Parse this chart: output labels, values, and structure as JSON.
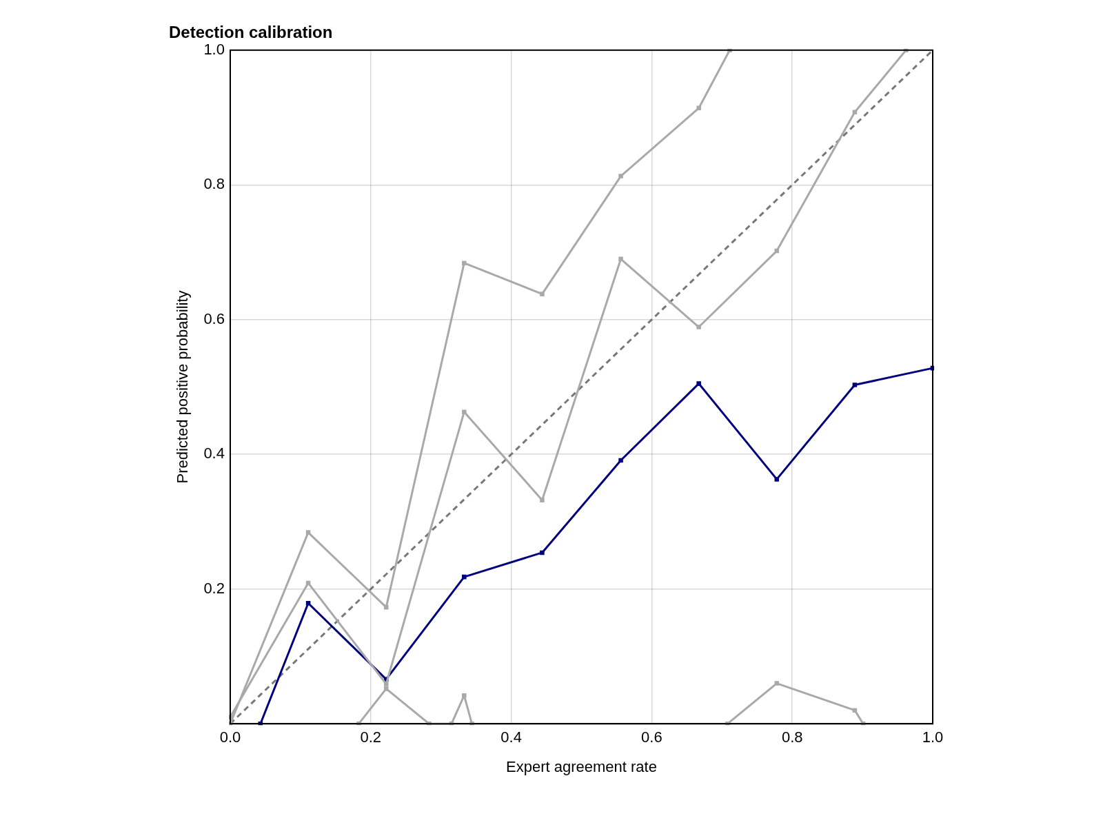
{
  "chart_data": {
    "type": "line",
    "title": "Detection calibration",
    "xlabel": "Expert agreement rate",
    "ylabel": "Predicted positive probability",
    "xlim": [
      0,
      1
    ],
    "ylim": [
      0,
      1
    ],
    "xticks": [
      {
        "value": 0,
        "label": "0.0"
      },
      0.2,
      0.4,
      0.6,
      0.8,
      {
        "value": 1,
        "label": "1.0"
      }
    ],
    "yticks": [
      0.2,
      0.4,
      0.6,
      0.8,
      {
        "value": 1,
        "label": "1.0"
      }
    ],
    "grid": true,
    "legend": false,
    "marker": "square",
    "line_style": "solid",
    "series": [
      {
        "color": "#a9a9a9",
        "x": [
          0,
          0.111,
          0.222,
          0.333,
          0.444,
          0.556,
          0.667,
          0.711
        ],
        "values": [
          0,
          0.284,
          0.173,
          0.684,
          0.638,
          0.813,
          0.914,
          1
        ]
      },
      {
        "color": "#a9a9a9",
        "x": [
          0,
          0.111,
          0.222,
          0.333,
          0.444,
          0.556,
          0.667,
          0.778,
          0.889,
          0.962
        ],
        "values": [
          0.01,
          0.209,
          0.059,
          0.463,
          0.332,
          0.69,
          0.589,
          0.702,
          0.908,
          1
        ]
      },
      {
        "color": "#a9a9a9",
        "x": [
          0.183,
          0.222,
          0.283,
          0.315,
          0.333,
          0.344,
          0.5,
          0.708,
          0.778,
          0.889,
          0.901
        ],
        "values": [
          0,
          0.052,
          0,
          0,
          0.042,
          0,
          null,
          0,
          0.06,
          0.02,
          0
        ]
      },
      {
        "color": "#00007f",
        "x": [
          0.043,
          0.111,
          0.222,
          0.333,
          0.444,
          0.556,
          0.667,
          0.778,
          0.889,
          1
        ],
        "values": [
          0,
          0.179,
          0.066,
          0.218,
          0.254,
          0.391,
          0.505,
          0.363,
          0.503,
          0.528
        ]
      },
      {
        "color": "#787878",
        "x": [
          0,
          1
        ],
        "values": [
          0,
          1
        ],
        "line_style": "dashed",
        "marker": "none"
      }
    ]
  }
}
